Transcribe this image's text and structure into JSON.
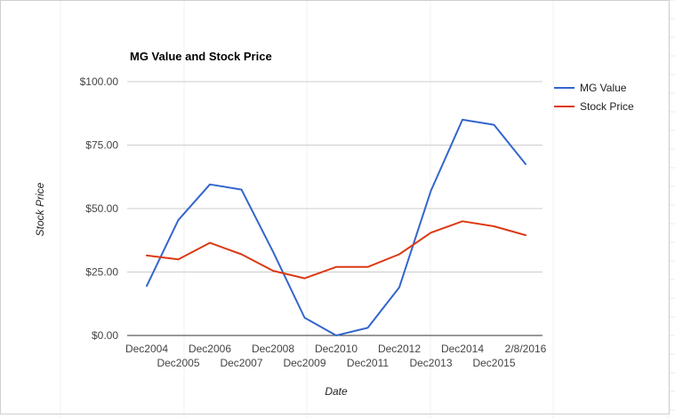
{
  "chart_data": {
    "type": "line",
    "title": "MG Value and Stock Price",
    "xlabel": "Date",
    "ylabel": "Stock Price",
    "ylim": [
      0,
      100
    ],
    "y_ticks": [
      "$0.00",
      "$25.00",
      "$50.00",
      "$75.00",
      "$100.00"
    ],
    "y_tick_values": [
      0,
      25,
      50,
      75,
      100
    ],
    "categories": [
      "Dec2004",
      "Dec2005",
      "Dec2006",
      "Dec2007",
      "Dec2008",
      "Dec2009",
      "Dec2010",
      "Dec2011",
      "Dec2012",
      "Dec2013",
      "Dec2014",
      "Dec2015",
      "2/8/2016"
    ],
    "series": [
      {
        "name": "MG Value",
        "color": "#3366cc",
        "values": [
          19.5,
          45.5,
          59.5,
          57.5,
          33.0,
          7.0,
          0.0,
          3.0,
          19.0,
          57.0,
          85.0,
          83.0,
          67.5
        ]
      },
      {
        "name": "Stock Price",
        "color": "#dc3912",
        "values": [
          31.5,
          30.0,
          36.5,
          32.0,
          25.5,
          22.5,
          27.0,
          27.0,
          32.0,
          40.5,
          45.0,
          43.0,
          39.5
        ]
      }
    ],
    "grid": true,
    "legend": "right"
  }
}
